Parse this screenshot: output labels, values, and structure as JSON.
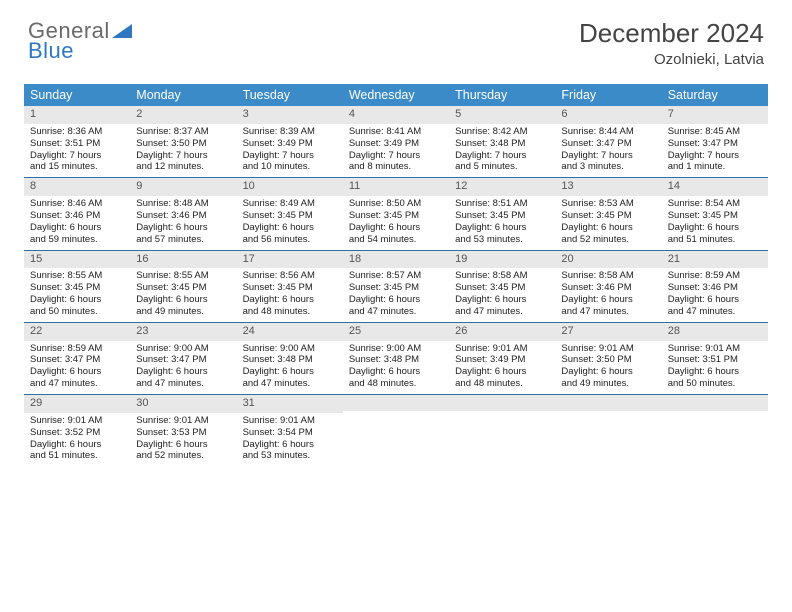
{
  "logo": {
    "part1": "General",
    "part2": "Blue"
  },
  "title": "December 2024",
  "location": "Ozolnieki, Latvia",
  "colors": {
    "header_bg": "#3b8bc9",
    "week_border": "#2f6fa8",
    "daynum_bg": "#e8e8e8",
    "logo_gray": "#6a6a6a",
    "logo_blue": "#2f78bf"
  },
  "day_names": [
    "Sunday",
    "Monday",
    "Tuesday",
    "Wednesday",
    "Thursday",
    "Friday",
    "Saturday"
  ],
  "weeks": [
    [
      {
        "n": "1",
        "sr": "Sunrise: 8:36 AM",
        "ss": "Sunset: 3:51 PM",
        "d1": "Daylight: 7 hours",
        "d2": "and 15 minutes."
      },
      {
        "n": "2",
        "sr": "Sunrise: 8:37 AM",
        "ss": "Sunset: 3:50 PM",
        "d1": "Daylight: 7 hours",
        "d2": "and 12 minutes."
      },
      {
        "n": "3",
        "sr": "Sunrise: 8:39 AM",
        "ss": "Sunset: 3:49 PM",
        "d1": "Daylight: 7 hours",
        "d2": "and 10 minutes."
      },
      {
        "n": "4",
        "sr": "Sunrise: 8:41 AM",
        "ss": "Sunset: 3:49 PM",
        "d1": "Daylight: 7 hours",
        "d2": "and 8 minutes."
      },
      {
        "n": "5",
        "sr": "Sunrise: 8:42 AM",
        "ss": "Sunset: 3:48 PM",
        "d1": "Daylight: 7 hours",
        "d2": "and 5 minutes."
      },
      {
        "n": "6",
        "sr": "Sunrise: 8:44 AM",
        "ss": "Sunset: 3:47 PM",
        "d1": "Daylight: 7 hours",
        "d2": "and 3 minutes."
      },
      {
        "n": "7",
        "sr": "Sunrise: 8:45 AM",
        "ss": "Sunset: 3:47 PM",
        "d1": "Daylight: 7 hours",
        "d2": "and 1 minute."
      }
    ],
    [
      {
        "n": "8",
        "sr": "Sunrise: 8:46 AM",
        "ss": "Sunset: 3:46 PM",
        "d1": "Daylight: 6 hours",
        "d2": "and 59 minutes."
      },
      {
        "n": "9",
        "sr": "Sunrise: 8:48 AM",
        "ss": "Sunset: 3:46 PM",
        "d1": "Daylight: 6 hours",
        "d2": "and 57 minutes."
      },
      {
        "n": "10",
        "sr": "Sunrise: 8:49 AM",
        "ss": "Sunset: 3:45 PM",
        "d1": "Daylight: 6 hours",
        "d2": "and 56 minutes."
      },
      {
        "n": "11",
        "sr": "Sunrise: 8:50 AM",
        "ss": "Sunset: 3:45 PM",
        "d1": "Daylight: 6 hours",
        "d2": "and 54 minutes."
      },
      {
        "n": "12",
        "sr": "Sunrise: 8:51 AM",
        "ss": "Sunset: 3:45 PM",
        "d1": "Daylight: 6 hours",
        "d2": "and 53 minutes."
      },
      {
        "n": "13",
        "sr": "Sunrise: 8:53 AM",
        "ss": "Sunset: 3:45 PM",
        "d1": "Daylight: 6 hours",
        "d2": "and 52 minutes."
      },
      {
        "n": "14",
        "sr": "Sunrise: 8:54 AM",
        "ss": "Sunset: 3:45 PM",
        "d1": "Daylight: 6 hours",
        "d2": "and 51 minutes."
      }
    ],
    [
      {
        "n": "15",
        "sr": "Sunrise: 8:55 AM",
        "ss": "Sunset: 3:45 PM",
        "d1": "Daylight: 6 hours",
        "d2": "and 50 minutes."
      },
      {
        "n": "16",
        "sr": "Sunrise: 8:55 AM",
        "ss": "Sunset: 3:45 PM",
        "d1": "Daylight: 6 hours",
        "d2": "and 49 minutes."
      },
      {
        "n": "17",
        "sr": "Sunrise: 8:56 AM",
        "ss": "Sunset: 3:45 PM",
        "d1": "Daylight: 6 hours",
        "d2": "and 48 minutes."
      },
      {
        "n": "18",
        "sr": "Sunrise: 8:57 AM",
        "ss": "Sunset: 3:45 PM",
        "d1": "Daylight: 6 hours",
        "d2": "and 47 minutes."
      },
      {
        "n": "19",
        "sr": "Sunrise: 8:58 AM",
        "ss": "Sunset: 3:45 PM",
        "d1": "Daylight: 6 hours",
        "d2": "and 47 minutes."
      },
      {
        "n": "20",
        "sr": "Sunrise: 8:58 AM",
        "ss": "Sunset: 3:46 PM",
        "d1": "Daylight: 6 hours",
        "d2": "and 47 minutes."
      },
      {
        "n": "21",
        "sr": "Sunrise: 8:59 AM",
        "ss": "Sunset: 3:46 PM",
        "d1": "Daylight: 6 hours",
        "d2": "and 47 minutes."
      }
    ],
    [
      {
        "n": "22",
        "sr": "Sunrise: 8:59 AM",
        "ss": "Sunset: 3:47 PM",
        "d1": "Daylight: 6 hours",
        "d2": "and 47 minutes."
      },
      {
        "n": "23",
        "sr": "Sunrise: 9:00 AM",
        "ss": "Sunset: 3:47 PM",
        "d1": "Daylight: 6 hours",
        "d2": "and 47 minutes."
      },
      {
        "n": "24",
        "sr": "Sunrise: 9:00 AM",
        "ss": "Sunset: 3:48 PM",
        "d1": "Daylight: 6 hours",
        "d2": "and 47 minutes."
      },
      {
        "n": "25",
        "sr": "Sunrise: 9:00 AM",
        "ss": "Sunset: 3:48 PM",
        "d1": "Daylight: 6 hours",
        "d2": "and 48 minutes."
      },
      {
        "n": "26",
        "sr": "Sunrise: 9:01 AM",
        "ss": "Sunset: 3:49 PM",
        "d1": "Daylight: 6 hours",
        "d2": "and 48 minutes."
      },
      {
        "n": "27",
        "sr": "Sunrise: 9:01 AM",
        "ss": "Sunset: 3:50 PM",
        "d1": "Daylight: 6 hours",
        "d2": "and 49 minutes."
      },
      {
        "n": "28",
        "sr": "Sunrise: 9:01 AM",
        "ss": "Sunset: 3:51 PM",
        "d1": "Daylight: 6 hours",
        "d2": "and 50 minutes."
      }
    ],
    [
      {
        "n": "29",
        "sr": "Sunrise: 9:01 AM",
        "ss": "Sunset: 3:52 PM",
        "d1": "Daylight: 6 hours",
        "d2": "and 51 minutes."
      },
      {
        "n": "30",
        "sr": "Sunrise: 9:01 AM",
        "ss": "Sunset: 3:53 PM",
        "d1": "Daylight: 6 hours",
        "d2": "and 52 minutes."
      },
      {
        "n": "31",
        "sr": "Sunrise: 9:01 AM",
        "ss": "Sunset: 3:54 PM",
        "d1": "Daylight: 6 hours",
        "d2": "and 53 minutes."
      },
      null,
      null,
      null,
      null
    ]
  ]
}
